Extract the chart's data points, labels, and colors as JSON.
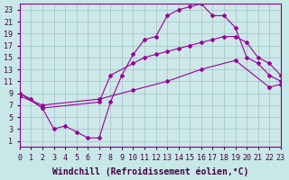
{
  "xlabel": "Windchill (Refroidissement éolien,°C)",
  "bg_color": "#c8e8e8",
  "plot_bg_color": "#cce8e8",
  "grid_color": "#a8c8c8",
  "line_color": "#990099",
  "xlim": [
    0,
    23
  ],
  "ylim": [
    0,
    24
  ],
  "xticks": [
    0,
    1,
    2,
    3,
    4,
    5,
    6,
    7,
    8,
    9,
    10,
    11,
    12,
    13,
    14,
    15,
    16,
    17,
    18,
    19,
    20,
    21,
    22,
    23
  ],
  "yticks": [
    1,
    3,
    5,
    7,
    9,
    11,
    13,
    15,
    17,
    19,
    21,
    23
  ],
  "line1_x": [
    0,
    1,
    2,
    3,
    4,
    5,
    6,
    7,
    8,
    9,
    10,
    11,
    12,
    13,
    14,
    15,
    16,
    17,
    18,
    19,
    20,
    21,
    22,
    23
  ],
  "line1_y": [
    9,
    8,
    6.5,
    3,
    3.5,
    2.5,
    1.5,
    1.5,
    7.5,
    12,
    15.5,
    18,
    18.5,
    22,
    23,
    23.5,
    24,
    22,
    22,
    20,
    15,
    14,
    12,
    11
  ],
  "line2_x": [
    0,
    2,
    7,
    8,
    10,
    11,
    12,
    13,
    14,
    15,
    16,
    17,
    18,
    19,
    20,
    21,
    22,
    23
  ],
  "line2_y": [
    9,
    6.5,
    7.5,
    12,
    14,
    15,
    15.5,
    16,
    16.5,
    17,
    17.5,
    18,
    18.5,
    18.5,
    17.5,
    15,
    14,
    12
  ],
  "line3_x": [
    0,
    2,
    7,
    10,
    13,
    16,
    19,
    22,
    23
  ],
  "line3_y": [
    8.5,
    7,
    8,
    9.5,
    11,
    13,
    14.5,
    10,
    10.5
  ],
  "font_family": "monospace",
  "tick_fontsize": 6,
  "xlabel_fontsize": 7
}
